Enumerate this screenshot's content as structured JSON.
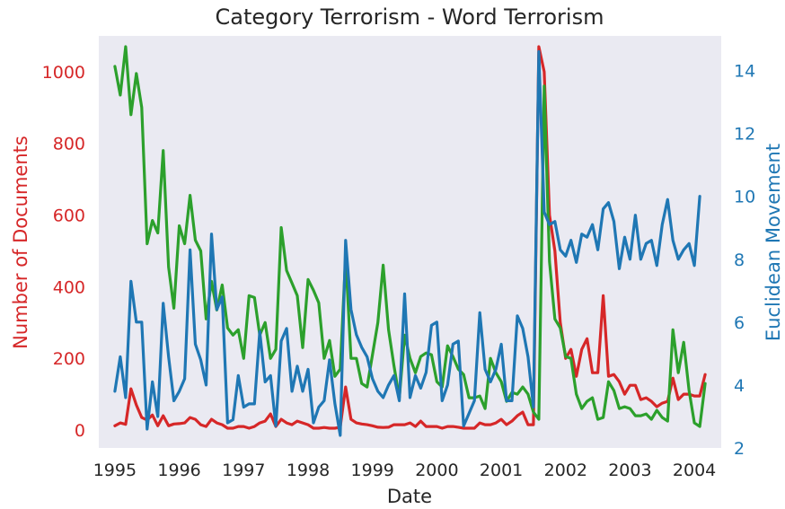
{
  "chart_data": {
    "type": "line",
    "title": "Category Terrorism - Word Terrorism",
    "xlabel": "Date",
    "ylabel_left": "Number of Documents",
    "ylabel_right": "Euclidean Movement",
    "x_start": "1995-01",
    "x_step": "1 month",
    "xlim": [
      "1994-10",
      "2004-06"
    ],
    "ylim_left": [
      -50,
      1100
    ],
    "ylim_right": [
      2,
      15.1
    ],
    "xticks": [
      "1995",
      "1996",
      "1997",
      "1998",
      "1999",
      "2000",
      "2001",
      "2002",
      "2003",
      "2004"
    ],
    "yticks_left": [
      0,
      200,
      400,
      600,
      800,
      1000
    ],
    "yticks_right": [
      2,
      4,
      6,
      8,
      10,
      12,
      14
    ],
    "grid": false,
    "background": "#eaeaf2",
    "series": [
      {
        "axis": "left",
        "color": "#d62728",
        "values": [
          12,
          20,
          16,
          115,
          70,
          35,
          28,
          42,
          12,
          40,
          12,
          17,
          18,
          20,
          35,
          30,
          15,
          10,
          30,
          20,
          15,
          5,
          5,
          10,
          10,
          5,
          10,
          20,
          25,
          45,
          10,
          30,
          20,
          15,
          25,
          20,
          15,
          5,
          5,
          7,
          5,
          5,
          8,
          120,
          30,
          20,
          17,
          15,
          12,
          8,
          7,
          8,
          15,
          15,
          15,
          20,
          10,
          25,
          10,
          10,
          10,
          5,
          10,
          10,
          8,
          5,
          5,
          5,
          20,
          15,
          15,
          20,
          30,
          15,
          25,
          40,
          50,
          15,
          15,
          1070,
          1000,
          600,
          500,
          300,
          200,
          225,
          150,
          225,
          255,
          160,
          160,
          375,
          150,
          155,
          135,
          100,
          125,
          125,
          85,
          90,
          80,
          65,
          75,
          80,
          145,
          85,
          100,
          100,
          95,
          95,
          155
        ]
      },
      {
        "axis": "left",
        "color": "#2ca02c",
        "values": [
          1015,
          935,
          1070,
          880,
          995,
          900,
          520,
          585,
          550,
          780,
          455,
          340,
          570,
          520,
          655,
          530,
          500,
          310,
          415,
          335,
          405,
          285,
          265,
          280,
          200,
          375,
          370,
          265,
          300,
          200,
          225,
          565,
          445,
          410,
          375,
          230,
          420,
          390,
          355,
          200,
          250,
          150,
          170,
          485,
          200,
          200,
          130,
          120,
          210,
          300,
          460,
          280,
          180,
          90,
          265,
          200,
          160,
          205,
          215,
          210,
          135,
          120,
          235,
          205,
          170,
          155,
          90,
          90,
          95,
          60,
          200,
          160,
          135,
          80,
          105,
          100,
          120,
          100,
          50,
          30,
          960,
          470,
          310,
          285,
          205,
          200,
          100,
          60,
          80,
          90,
          30,
          35,
          135,
          110,
          60,
          65,
          60,
          40,
          40,
          45,
          30,
          55,
          35,
          25,
          280,
          160,
          245,
          110,
          20,
          10,
          130
        ]
      },
      {
        "axis": "right",
        "color": "#1f77b4",
        "values": [
          3.8,
          4.9,
          3.6,
          7.3,
          6.0,
          6.0,
          2.6,
          4.1,
          3.0,
          6.6,
          4.9,
          3.5,
          3.8,
          4.2,
          8.3,
          5.3,
          4.8,
          4.0,
          8.8,
          6.4,
          6.8,
          2.8,
          2.9,
          4.3,
          3.3,
          3.4,
          3.4,
          5.7,
          4.1,
          4.3,
          2.7,
          5.4,
          5.8,
          3.8,
          4.6,
          3.8,
          4.5,
          2.8,
          3.3,
          3.5,
          4.8,
          3.4,
          2.4,
          8.6,
          6.4,
          5.6,
          5.2,
          4.9,
          4.2,
          3.8,
          3.6,
          4.0,
          4.3,
          3.5,
          6.9,
          3.6,
          4.3,
          3.9,
          4.4,
          5.9,
          6.0,
          3.5,
          4.0,
          5.3,
          5.4,
          2.7,
          3.1,
          3.5,
          6.3,
          4.5,
          4.1,
          4.5,
          5.3,
          3.5,
          3.5,
          6.2,
          5.8,
          4.9,
          3.3,
          14.6,
          9.5,
          9.1,
          9.2,
          8.3,
          8.1,
          8.6,
          7.9,
          8.8,
          8.7,
          9.1,
          8.3,
          9.6,
          9.8,
          9.2,
          7.7,
          8.7,
          8.0,
          9.4,
          8.0,
          8.5,
          8.6,
          7.8,
          9.1,
          9.9,
          8.6,
          8.0,
          8.3,
          8.5,
          7.8,
          10.0
        ]
      }
    ]
  }
}
